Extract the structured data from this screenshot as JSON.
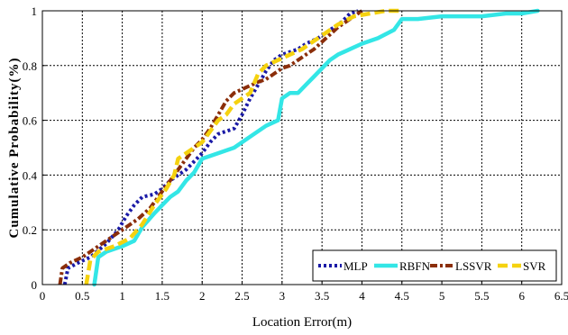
{
  "chart_data": {
    "type": "line",
    "xlabel": "Location Error(m)",
    "ylabel": "Cumulative Probability(%)",
    "xlim": [
      0,
      6.5
    ],
    "ylim": [
      0,
      1
    ],
    "xticks": [
      "0",
      "0.5",
      "1",
      "1.5",
      "2",
      "2.5",
      "3",
      "3.5",
      "4",
      "4.5",
      "5",
      "5.5",
      "6",
      "6.5"
    ],
    "yticks": [
      "0",
      "0.2",
      "0.4",
      "0.6",
      "0.8",
      "1"
    ],
    "grid": true,
    "legend_position": "bottom-right",
    "series": [
      {
        "name": "MLP",
        "color": "#1a1aa6",
        "style": "dotted",
        "x": [
          0.28,
          0.32,
          0.45,
          0.6,
          0.8,
          0.95,
          1.05,
          1.15,
          1.25,
          1.4,
          1.5,
          1.6,
          1.7,
          1.8,
          1.9,
          2.0,
          2.1,
          2.2,
          2.3,
          2.4,
          2.5,
          2.6,
          2.7,
          2.8,
          2.9,
          3.0,
          3.1,
          3.2,
          3.3,
          3.45,
          3.6,
          3.75,
          3.85,
          3.95
        ],
        "y": [
          0.0,
          0.06,
          0.08,
          0.1,
          0.15,
          0.2,
          0.25,
          0.29,
          0.32,
          0.33,
          0.35,
          0.38,
          0.4,
          0.42,
          0.45,
          0.48,
          0.52,
          0.55,
          0.56,
          0.57,
          0.62,
          0.68,
          0.73,
          0.78,
          0.82,
          0.84,
          0.85,
          0.86,
          0.88,
          0.9,
          0.93,
          0.96,
          0.99,
          1.0
        ]
      },
      {
        "name": "RBFN",
        "color": "#33e6e6",
        "style": "solid",
        "x": [
          0.65,
          0.7,
          0.8,
          1.0,
          1.15,
          1.25,
          1.4,
          1.5,
          1.6,
          1.7,
          1.8,
          1.9,
          2.0,
          2.2,
          2.4,
          2.6,
          2.8,
          2.95,
          3.0,
          3.1,
          3.2,
          3.3,
          3.4,
          3.5,
          3.6,
          3.7,
          3.85,
          4.0,
          4.2,
          4.4,
          4.5,
          4.7,
          5.0,
          5.5,
          5.8,
          6.0,
          6.2
        ],
        "y": [
          0.0,
          0.1,
          0.12,
          0.14,
          0.16,
          0.21,
          0.26,
          0.29,
          0.32,
          0.34,
          0.38,
          0.41,
          0.46,
          0.48,
          0.5,
          0.54,
          0.58,
          0.6,
          0.68,
          0.7,
          0.7,
          0.73,
          0.76,
          0.79,
          0.82,
          0.84,
          0.86,
          0.88,
          0.9,
          0.93,
          0.97,
          0.97,
          0.98,
          0.98,
          0.99,
          0.99,
          1.0
        ]
      },
      {
        "name": "LSSVR",
        "color": "#8b2e0a",
        "style": "dash-dot",
        "x": [
          0.22,
          0.25,
          0.35,
          0.5,
          0.65,
          0.8,
          1.0,
          1.1,
          1.2,
          1.35,
          1.5,
          1.6,
          1.7,
          1.8,
          1.9,
          2.0,
          2.1,
          2.2,
          2.3,
          2.4,
          2.55,
          2.7,
          2.8,
          2.9,
          3.0,
          3.1,
          3.2,
          3.3,
          3.4,
          3.55,
          3.7,
          3.85,
          4.0
        ],
        "y": [
          0.0,
          0.06,
          0.08,
          0.1,
          0.13,
          0.16,
          0.2,
          0.22,
          0.24,
          0.28,
          0.34,
          0.38,
          0.42,
          0.46,
          0.5,
          0.53,
          0.57,
          0.62,
          0.67,
          0.7,
          0.72,
          0.74,
          0.75,
          0.77,
          0.79,
          0.8,
          0.82,
          0.84,
          0.86,
          0.9,
          0.94,
          0.97,
          1.0
        ]
      },
      {
        "name": "SVR",
        "color": "#f5d20f",
        "style": "dashed",
        "x": [
          0.55,
          0.6,
          0.7,
          0.9,
          1.1,
          1.25,
          1.4,
          1.55,
          1.65,
          1.7,
          1.8,
          1.9,
          2.0,
          2.1,
          2.2,
          2.3,
          2.4,
          2.5,
          2.6,
          2.7,
          2.8,
          2.95,
          3.1,
          3.25,
          3.4,
          3.55,
          3.7,
          3.9,
          4.1,
          4.3,
          4.5
        ],
        "y": [
          0.0,
          0.09,
          0.12,
          0.14,
          0.17,
          0.22,
          0.29,
          0.35,
          0.4,
          0.46,
          0.48,
          0.5,
          0.52,
          0.56,
          0.6,
          0.62,
          0.66,
          0.68,
          0.7,
          0.77,
          0.8,
          0.82,
          0.84,
          0.86,
          0.89,
          0.92,
          0.95,
          0.98,
          0.99,
          1.0,
          1.0
        ]
      }
    ]
  }
}
